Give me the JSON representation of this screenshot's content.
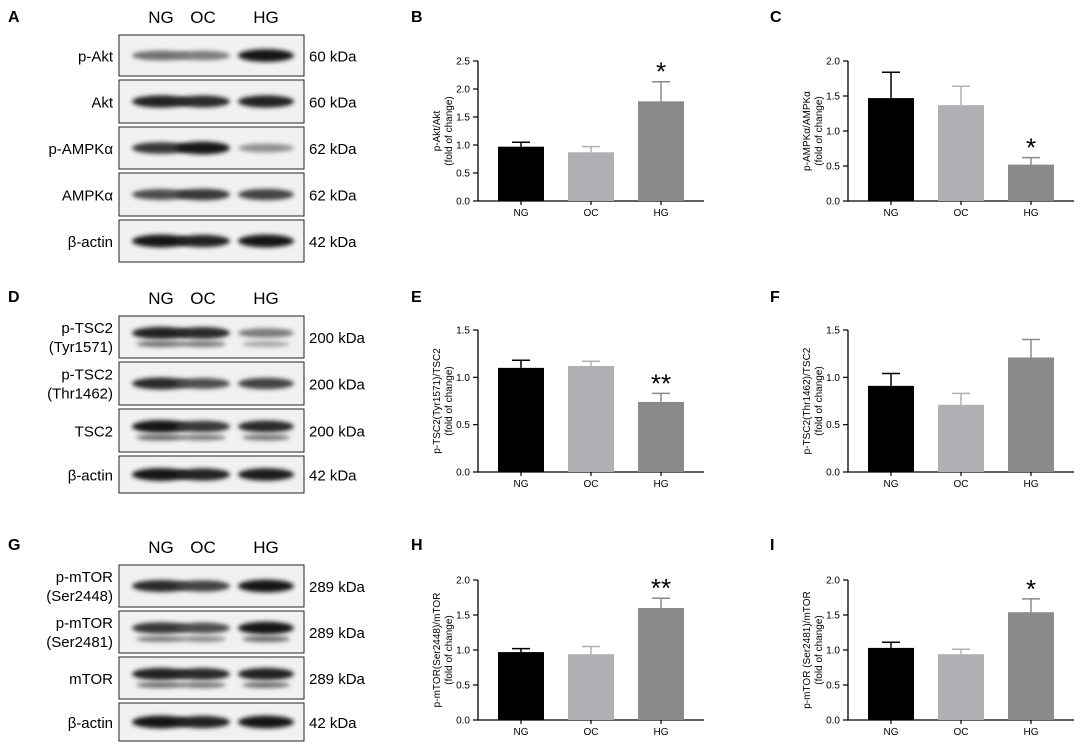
{
  "blots": [
    {
      "letter": "A",
      "lanes": [
        "NG",
        "OC",
        "HG"
      ],
      "rows": [
        {
          "label": [
            "p-Akt"
          ],
          "mw": "60 kDa",
          "intensity": [
            0.55,
            0.5,
            0.95
          ],
          "double": false
        },
        {
          "label": [
            "Akt"
          ],
          "mw": "60 kDa",
          "intensity": [
            0.9,
            0.85,
            0.9
          ],
          "double": false
        },
        {
          "label": [
            "p-AMPKα"
          ],
          "mw": "62 kDa",
          "intensity": [
            0.8,
            0.95,
            0.4
          ],
          "double": false
        },
        {
          "label": [
            "AMPKα"
          ],
          "mw": "62 kDa",
          "intensity": [
            0.7,
            0.8,
            0.75
          ],
          "double": false
        },
        {
          "label": [
            "β-actin"
          ],
          "mw": "42 kDa",
          "intensity": [
            0.95,
            0.9,
            0.95
          ],
          "double": false
        }
      ]
    },
    {
      "letter": "D",
      "lanes": [
        "NG",
        "OC",
        "HG"
      ],
      "rows": [
        {
          "label": [
            "p-TSC2",
            "(Tyr1571)"
          ],
          "mw": "200 kDa",
          "intensity": [
            0.9,
            0.85,
            0.5
          ],
          "double": true
        },
        {
          "label": [
            "p-TSC2",
            "(Thr1462)"
          ],
          "mw": "200 kDa",
          "intensity": [
            0.85,
            0.7,
            0.75
          ],
          "double": false
        },
        {
          "label": [
            "TSC2"
          ],
          "mw": "200 kDa",
          "intensity": [
            0.95,
            0.8,
            0.85
          ],
          "double": true
        },
        {
          "label": [
            "β-actin"
          ],
          "mw": "42 kDa",
          "intensity": [
            0.95,
            0.9,
            0.92
          ],
          "double": false
        }
      ]
    },
    {
      "letter": "G",
      "lanes": [
        "NG",
        "OC",
        "HG"
      ],
      "rows": [
        {
          "label": [
            "p-mTOR",
            "(Ser2448)"
          ],
          "mw": "289 kDa",
          "intensity": [
            0.85,
            0.75,
            0.95
          ],
          "double": false
        },
        {
          "label": [
            "p-mTOR",
            "(Ser2481)"
          ],
          "mw": "289 kDa",
          "intensity": [
            0.8,
            0.7,
            0.95
          ],
          "double": true
        },
        {
          "label": [
            "mTOR"
          ],
          "mw": "289 kDa",
          "intensity": [
            0.9,
            0.85,
            0.9
          ],
          "double": true
        },
        {
          "label": [
            "β-actin"
          ],
          "mw": "42 kDa",
          "intensity": [
            0.95,
            0.9,
            0.95
          ],
          "double": false
        }
      ]
    }
  ],
  "chart_data": [
    {
      "letter": "B",
      "type": "bar",
      "categories": [
        "NG",
        "OC",
        "HG"
      ],
      "values": [
        0.97,
        0.87,
        1.78
      ],
      "errors": [
        0.08,
        0.1,
        0.35
      ],
      "sig": [
        "",
        "",
        "*"
      ],
      "ylabel": [
        "p-Akt/Akt",
        "(fold of change)"
      ],
      "ylim": [
        0,
        2.5
      ],
      "yticks": [
        "0.0",
        "0.5",
        "1.0",
        "1.5",
        "2.0",
        "2.5"
      ]
    },
    {
      "letter": "C",
      "type": "bar",
      "categories": [
        "NG",
        "OC",
        "HG"
      ],
      "values": [
        1.47,
        1.37,
        0.52
      ],
      "errors": [
        0.37,
        0.27,
        0.1
      ],
      "sig": [
        "",
        "",
        "*"
      ],
      "ylabel": [
        "p-AMPKα/AMPKα",
        "(fold of change)"
      ],
      "ylim": [
        0,
        2.0
      ],
      "yticks": [
        "0.0",
        "0.5",
        "1.0",
        "1.5",
        "2.0"
      ]
    },
    {
      "letter": "E",
      "type": "bar",
      "categories": [
        "NG",
        "OC",
        "HG"
      ],
      "values": [
        1.1,
        1.12,
        0.74
      ],
      "errors": [
        0.08,
        0.05,
        0.09
      ],
      "sig": [
        "",
        "",
        "**"
      ],
      "ylabel": [
        "p-TSC2(Tyr1571)/TSC2",
        "(fold of change)"
      ],
      "ylim": [
        0,
        1.5
      ],
      "yticks": [
        "0.0",
        "0.5",
        "1.0",
        "1.5"
      ]
    },
    {
      "letter": "F",
      "type": "bar",
      "categories": [
        "NG",
        "OC",
        "HG"
      ],
      "values": [
        0.91,
        0.71,
        1.21
      ],
      "errors": [
        0.13,
        0.12,
        0.19
      ],
      "sig": [
        "",
        "",
        ""
      ],
      "ylabel": [
        "p-TSC2(Thr1462)/TSC2",
        "(fold of change)"
      ],
      "ylim": [
        0,
        1.5
      ],
      "yticks": [
        "0.0",
        "0.5",
        "1.0",
        "1.5"
      ]
    },
    {
      "letter": "H",
      "type": "bar",
      "categories": [
        "NG",
        "OC",
        "HG"
      ],
      "values": [
        0.97,
        0.94,
        1.6
      ],
      "errors": [
        0.05,
        0.11,
        0.14
      ],
      "sig": [
        "",
        "",
        "**"
      ],
      "ylabel": [
        "p-mTOR(Ser2448)/mTOR",
        "(fold of change)"
      ],
      "ylim": [
        0,
        2.0
      ],
      "yticks": [
        "0.0",
        "0.5",
        "1.0",
        "1.5",
        "2.0"
      ]
    },
    {
      "letter": "I",
      "type": "bar",
      "categories": [
        "NG",
        "OC",
        "HG"
      ],
      "values": [
        1.03,
        0.94,
        1.54
      ],
      "errors": [
        0.08,
        0.07,
        0.19
      ],
      "sig": [
        "",
        "",
        "*"
      ],
      "ylabel": [
        "p-mTOR (Ser2481)/mTOR",
        "(fold of change)"
      ],
      "ylim": [
        0,
        2.0
      ],
      "yticks": [
        "0.0",
        "0.5",
        "1.0",
        "1.5",
        "2.0"
      ]
    }
  ],
  "colors": {
    "NG": "#000000",
    "OC": "#b0b0b4",
    "HG": "#8a8a8a"
  }
}
